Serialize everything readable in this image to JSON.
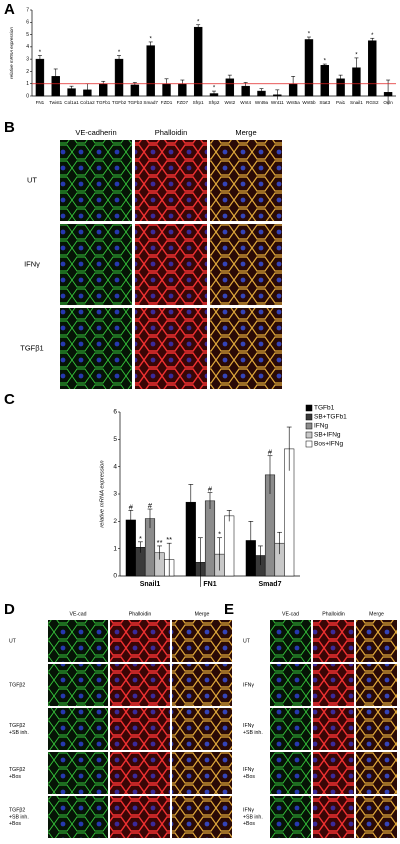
{
  "chart_data": [
    {
      "type": "bar",
      "y_label": "relative mRNA expression",
      "categories": [
        "FN1",
        "Twist1",
        "Col1a1",
        "Col1a2",
        "TGFb1",
        "TGFb2",
        "TGFb3",
        "Smad7",
        "FZD1",
        "FZD7",
        "Sfrp1",
        "Sfrp2",
        "Wnt2",
        "Wnt4",
        "Wnt9a",
        "Wnt11",
        "Wnt5a",
        "Wnt5b",
        "Stat3",
        "Pai1",
        "Snail1",
        "RGS2",
        "Ocln"
      ],
      "values": [
        3.0,
        1.6,
        0.6,
        0.5,
        1.0,
        3.0,
        0.9,
        4.1,
        1.0,
        1.0,
        5.6,
        0.2,
        1.4,
        0.8,
        0.4,
        0.1,
        1.0,
        4.6,
        2.5,
        1.4,
        2.3,
        4.5,
        0.3
      ],
      "errors": [
        0.3,
        0.6,
        0.2,
        0.5,
        0.2,
        0.3,
        0.2,
        0.3,
        0.4,
        0.3,
        0.2,
        0.2,
        0.3,
        0.3,
        0.2,
        0.4,
        0.6,
        0.2,
        0.1,
        0.3,
        0.8,
        0.2,
        1.0
      ],
      "annotations": [
        "*",
        null,
        null,
        null,
        null,
        "*",
        null,
        "*",
        null,
        null,
        "*",
        "*",
        null,
        null,
        null,
        null,
        null,
        "*",
        "*",
        null,
        "*",
        "*",
        null
      ],
      "color": "#000000",
      "reference_line": 1,
      "reference_color": "#e02020",
      "ylim": [
        0,
        7
      ],
      "yticks": [
        0,
        1,
        2,
        3,
        4,
        5,
        6,
        7
      ],
      "grid": false
    },
    {
      "type": "bar",
      "y_label": "relative mRNA expression",
      "categories": [
        "Snail1",
        "FN1",
        "Smad7"
      ],
      "series": [
        {
          "name": "TGFb1",
          "color": "#000000",
          "values": [
            2.05,
            2.7,
            1.3
          ],
          "errors": [
            0.35,
            0.65,
            0.7
          ],
          "annotations": [
            "#",
            null,
            null
          ]
        },
        {
          "name": "SB+TGFb1",
          "color": "#3a3a3a",
          "values": [
            1.05,
            0.5,
            0.75
          ],
          "errors": [
            0.2,
            0.9,
            0.35
          ],
          "annotations": [
            "*",
            null,
            null
          ]
        },
        {
          "name": "IFNg",
          "color": "#8c8c8c",
          "values": [
            2.1,
            2.75,
            3.7
          ],
          "errors": [
            0.35,
            0.3,
            0.7
          ],
          "annotations": [
            "#",
            "#",
            "#"
          ]
        },
        {
          "name": "SB+IFNg",
          "color": "#c8c8c8",
          "values": [
            0.85,
            0.8,
            1.2
          ],
          "errors": [
            0.25,
            0.6,
            0.4
          ],
          "annotations": [
            "**",
            "*",
            null
          ]
        },
        {
          "name": "Bos+IFNg",
          "color": "#ffffff",
          "values": [
            0.6,
            2.2,
            4.65
          ],
          "errors": [
            0.6,
            0.2,
            0.8
          ],
          "annotations": [
            "**",
            null,
            null
          ]
        }
      ],
      "ylim": [
        0,
        6
      ],
      "yticks": [
        0,
        1,
        2,
        3,
        4,
        5,
        6
      ],
      "grid": false
    }
  ],
  "panel_labels": [
    "A",
    "B",
    "C",
    "D",
    "E"
  ],
  "panel_b": {
    "columns": [
      "VE-cadherin",
      "Phalloidin",
      "Merge"
    ],
    "rows": [
      [
        "UT"
      ],
      [
        "IFNγ"
      ],
      [
        "TGFβ1"
      ]
    ]
  },
  "panel_d": {
    "columns": [
      "VE-cad",
      "Phalloidin",
      "Merge"
    ],
    "rows": [
      [
        "UT"
      ],
      [
        "TGFβ2"
      ],
      [
        "TGFβ2",
        "+SB inh."
      ],
      [
        "TGFβ2",
        "+Bos"
      ],
      [
        "TGFβ2",
        "+SB inh.",
        "+Bos"
      ]
    ]
  },
  "panel_e": {
    "columns": [
      "VE-cad",
      "Phalloidin",
      "Merge"
    ],
    "rows": [
      [
        "UT"
      ],
      [
        "IFNγ"
      ],
      [
        "IFNγ",
        "+SB inh."
      ],
      [
        "IFNγ",
        "+Bos"
      ],
      [
        "IFNγ",
        "+SB inh.",
        "+Bos"
      ]
    ]
  }
}
